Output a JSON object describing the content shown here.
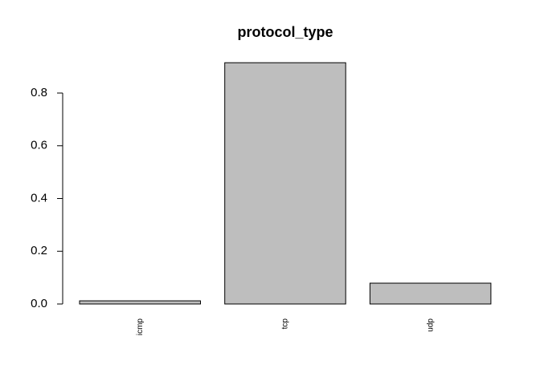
{
  "chart_data": {
    "type": "bar",
    "title": "protocol_type",
    "categories": [
      "icmp",
      "tcp",
      "udp"
    ],
    "values": [
      0.012,
      0.915,
      0.079
    ],
    "color": "#bebebe",
    "ylim": [
      0,
      0.92
    ],
    "yticks": [
      {
        "value": 0,
        "label": "0.0"
      },
      0.2,
      0.4,
      0.6,
      0.8
    ]
  }
}
